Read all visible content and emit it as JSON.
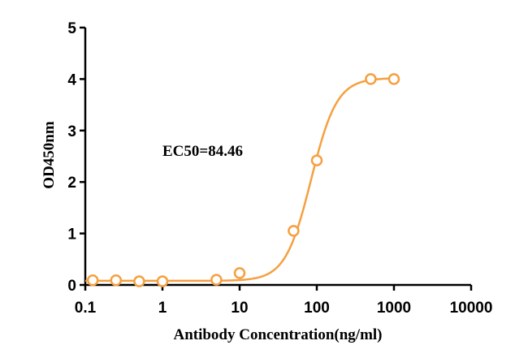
{
  "chart_data": {
    "type": "scatter",
    "x_scale": "log",
    "xlabel": "Antibody Concentration(ng/ml)",
    "ylabel": "OD450nm",
    "xlim": [
      0.1,
      10000
    ],
    "ylim": [
      0,
      5
    ],
    "x_ticks": [
      "0.1",
      "1",
      "10",
      "100",
      "1000",
      "10000"
    ],
    "y_ticks": [
      "0",
      "1",
      "2",
      "3",
      "4",
      "5"
    ],
    "annotation": "EC50=84.46",
    "series": [
      {
        "color": "#F5A040",
        "x": [
          0.125,
          0.25,
          0.5,
          1,
          5,
          10,
          50,
          100,
          500,
          1000
        ],
        "y": [
          0.09,
          0.09,
          0.07,
          0.07,
          0.1,
          0.23,
          1.05,
          2.42,
          4.0,
          4.0
        ]
      }
    ],
    "fit_curve": {
      "type": "4PL",
      "bottom": 0.08,
      "top": 4.02,
      "ec50": 84.46,
      "hill": 2.6,
      "x_range": [
        0.1,
        1000
      ]
    },
    "grid": false,
    "legend": "none"
  }
}
